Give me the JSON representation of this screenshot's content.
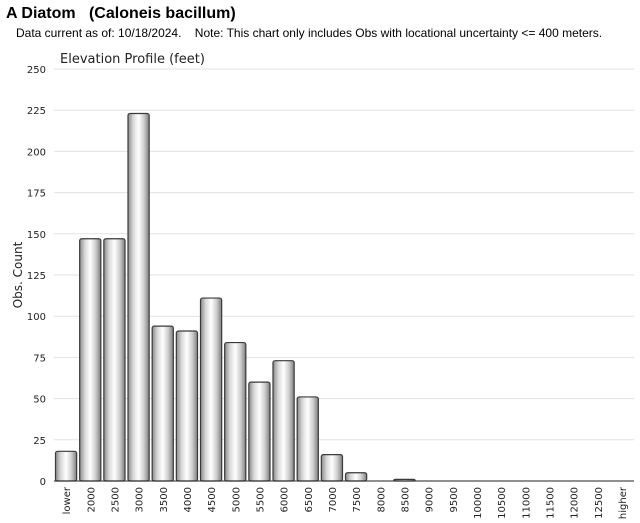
{
  "header": {
    "title": "A Diatom   (Caloneis bacillum)",
    "subtitle": "Data current as of: 10/18/2024.    Note: This chart only includes Obs with locational uncertainty <= 400 meters."
  },
  "chart_data": {
    "type": "bar",
    "title": "Elevation Profile (feet)",
    "xlabel": "",
    "ylabel": "Obs. Count",
    "ylim": [
      0,
      250
    ],
    "yticks": [
      0,
      25,
      50,
      75,
      100,
      125,
      150,
      175,
      200,
      225,
      250
    ],
    "grid": true,
    "categories": [
      "lower",
      "2000",
      "2500",
      "3000",
      "3500",
      "4000",
      "4500",
      "5000",
      "5500",
      "6000",
      "6500",
      "7000",
      "7500",
      "8000",
      "8500",
      "9000",
      "9500",
      "10000",
      "10500",
      "11000",
      "11500",
      "12000",
      "12500",
      "higher"
    ],
    "values": [
      18,
      147,
      147,
      223,
      94,
      91,
      111,
      84,
      60,
      73,
      51,
      16,
      5,
      0,
      1,
      0,
      0,
      0,
      0,
      0,
      0,
      0,
      0,
      0
    ]
  }
}
